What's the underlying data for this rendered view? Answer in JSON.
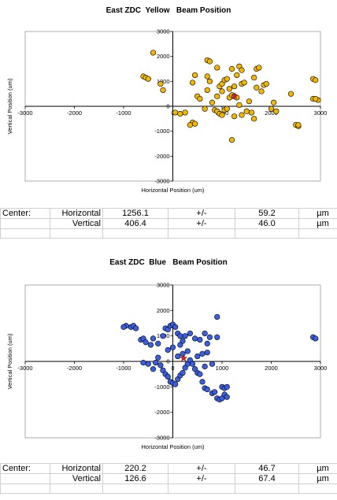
{
  "charts": [
    {
      "title": "East ZDC  Yellow   Beam Position",
      "xlabel": "Horizontal Position (um)",
      "ylabel": "Vertical Position (um)",
      "center": {
        "label": "Center:",
        "h_label": "Horizontal",
        "h_value": "1256.1",
        "h_pm": "+/-",
        "h_err": "59.2",
        "v_label": "Vertical",
        "v_value": "406.4",
        "v_pm": "+/-",
        "v_err": "46.0",
        "unit": "µm"
      }
    },
    {
      "title": "East ZDC  Blue   Beam Position",
      "xlabel": "Horizontal Position (um)",
      "ylabel": "Vertical Position (um)",
      "center": {
        "label": "Center:",
        "h_label": "Horizontal",
        "h_value": "220.2",
        "h_pm": "+/-",
        "h_err": "46.7",
        "v_label": "Vertical",
        "v_value": "126.6",
        "v_pm": "+/-",
        "v_err": "67.4",
        "unit": "µm"
      }
    }
  ],
  "chart_data": [
    {
      "type": "scatter",
      "title": "East ZDC  Yellow   Beam Position",
      "xlabel": "Horizontal Position (um)",
      "ylabel": "Vertical Position (um)",
      "xlim": [
        -3000,
        3000
      ],
      "ylim": [
        -3000,
        3000
      ],
      "xticks": [
        -3000,
        -2000,
        -1000,
        0,
        1000,
        2000,
        3000
      ],
      "yticks": [
        -3000,
        -2000,
        -1000,
        0,
        1000,
        2000,
        3000
      ],
      "marker_color": "#f2b705",
      "center_marker_color": "#cc2222",
      "center": [
        1256,
        406
      ],
      "points": [
        [
          -400,
          2150
        ],
        [
          -600,
          1200
        ],
        [
          -550,
          1150
        ],
        [
          -500,
          1100
        ],
        [
          -250,
          900
        ],
        [
          -200,
          650
        ],
        [
          50,
          -250
        ],
        [
          150,
          -300
        ],
        [
          250,
          -250
        ],
        [
          400,
          -650
        ],
        [
          450,
          -700
        ],
        [
          350,
          -750
        ],
        [
          500,
          400
        ],
        [
          400,
          950
        ],
        [
          450,
          1250
        ],
        [
          550,
          300
        ],
        [
          650,
          -100
        ],
        [
          700,
          650
        ],
        [
          750,
          1000
        ],
        [
          700,
          1200
        ],
        [
          900,
          400
        ],
        [
          950,
          800
        ],
        [
          700,
          1850
        ],
        [
          750,
          1800
        ],
        [
          900,
          1550
        ],
        [
          800,
          150
        ],
        [
          850,
          -150
        ],
        [
          900,
          -200
        ],
        [
          950,
          -300
        ],
        [
          1000,
          -350
        ],
        [
          1050,
          -150
        ],
        [
          1100,
          -100
        ],
        [
          1000,
          900
        ],
        [
          1050,
          1050
        ],
        [
          1100,
          1100
        ],
        [
          1000,
          600
        ],
        [
          1150,
          350
        ],
        [
          1200,
          450
        ],
        [
          1250,
          400
        ],
        [
          1300,
          350
        ],
        [
          1150,
          700
        ],
        [
          1250,
          800
        ],
        [
          1300,
          1250
        ],
        [
          1200,
          1500
        ],
        [
          1350,
          1600
        ],
        [
          1400,
          1450
        ],
        [
          1400,
          900
        ],
        [
          1450,
          950
        ],
        [
          1350,
          50
        ],
        [
          1250,
          -400
        ],
        [
          1200,
          -1350
        ],
        [
          1400,
          -350
        ],
        [
          1500,
          -200
        ],
        [
          1550,
          200
        ],
        [
          1600,
          -250
        ],
        [
          1650,
          -500
        ],
        [
          1700,
          750
        ],
        [
          1650,
          1150
        ],
        [
          1700,
          1500
        ],
        [
          1750,
          1550
        ],
        [
          1800,
          600
        ],
        [
          1850,
          850
        ],
        [
          1900,
          900
        ],
        [
          2000,
          -100
        ],
        [
          2050,
          150
        ],
        [
          2100,
          -200
        ],
        [
          2400,
          500
        ],
        [
          2500,
          -750
        ],
        [
          2550,
          -800
        ],
        [
          2550,
          -750
        ],
        [
          2850,
          1100
        ],
        [
          2900,
          1050
        ],
        [
          2850,
          300
        ],
        [
          2950,
          250
        ],
        [
          2900,
          300
        ]
      ]
    },
    {
      "type": "scatter",
      "title": "East ZDC  Blue   Beam Position",
      "xlabel": "Horizontal Position (um)",
      "ylabel": "Vertical Position (um)",
      "xlim": [
        -3000,
        3000
      ],
      "ylim": [
        -3000,
        3000
      ],
      "xticks": [
        -3000,
        -2000,
        -1000,
        0,
        1000,
        2000,
        3000
      ],
      "yticks": [
        -3000,
        -2000,
        -1000,
        0,
        1000,
        2000,
        3000
      ],
      "marker_color": "#3a5fe0",
      "center_marker_color": "#cc2222",
      "center": [
        220,
        127
      ],
      "points": [
        [
          -950,
          1400
        ],
        [
          -850,
          1350
        ],
        [
          -800,
          1400
        ],
        [
          -750,
          1300
        ],
        [
          -1000,
          1350
        ],
        [
          -650,
          850
        ],
        [
          -600,
          900
        ],
        [
          -550,
          750
        ],
        [
          -450,
          650
        ],
        [
          -400,
          900
        ],
        [
          -300,
          700
        ],
        [
          -200,
          1000
        ],
        [
          -150,
          1300
        ],
        [
          -100,
          1250
        ],
        [
          -50,
          1400
        ],
        [
          0,
          1450
        ],
        [
          50,
          1350
        ],
        [
          100,
          1100
        ],
        [
          150,
          1000
        ],
        [
          200,
          800
        ],
        [
          250,
          1000
        ],
        [
          350,
          1100
        ],
        [
          450,
          900
        ],
        [
          550,
          850
        ],
        [
          650,
          1100
        ],
        [
          700,
          700
        ],
        [
          750,
          950
        ],
        [
          900,
          950
        ],
        [
          900,
          1750
        ],
        [
          -600,
          -50
        ],
        [
          -500,
          -100
        ],
        [
          -400,
          -300
        ],
        [
          -350,
          -50
        ],
        [
          -300,
          150
        ],
        [
          -250,
          -150
        ],
        [
          -200,
          -350
        ],
        [
          -150,
          -500
        ],
        [
          -100,
          -600
        ],
        [
          -50,
          -800
        ],
        [
          0,
          -850
        ],
        [
          50,
          -900
        ],
        [
          100,
          -700
        ],
        [
          150,
          -550
        ],
        [
          200,
          -450
        ],
        [
          250,
          -250
        ],
        [
          300,
          -100
        ],
        [
          350,
          50
        ],
        [
          400,
          -100
        ],
        [
          450,
          -300
        ],
        [
          500,
          -450
        ],
        [
          550,
          -500
        ],
        [
          600,
          -800
        ],
        [
          650,
          -1050
        ],
        [
          700,
          -1100
        ],
        [
          800,
          -1250
        ],
        [
          850,
          -1200
        ],
        [
          900,
          -1450
        ],
        [
          950,
          -1500
        ],
        [
          1000,
          -1450
        ],
        [
          1050,
          -1300
        ],
        [
          1100,
          -1400
        ],
        [
          1000,
          -1000
        ],
        [
          1050,
          -1050
        ],
        [
          1100,
          -1000
        ],
        [
          100,
          200
        ],
        [
          200,
          300
        ],
        [
          300,
          400
        ],
        [
          -100,
          450
        ],
        [
          0,
          550
        ],
        [
          150,
          650
        ],
        [
          500,
          200
        ],
        [
          600,
          300
        ],
        [
          700,
          350
        ],
        [
          650,
          -200
        ],
        [
          800,
          -100
        ],
        [
          2850,
          950
        ],
        [
          2900,
          900
        ]
      ]
    }
  ]
}
